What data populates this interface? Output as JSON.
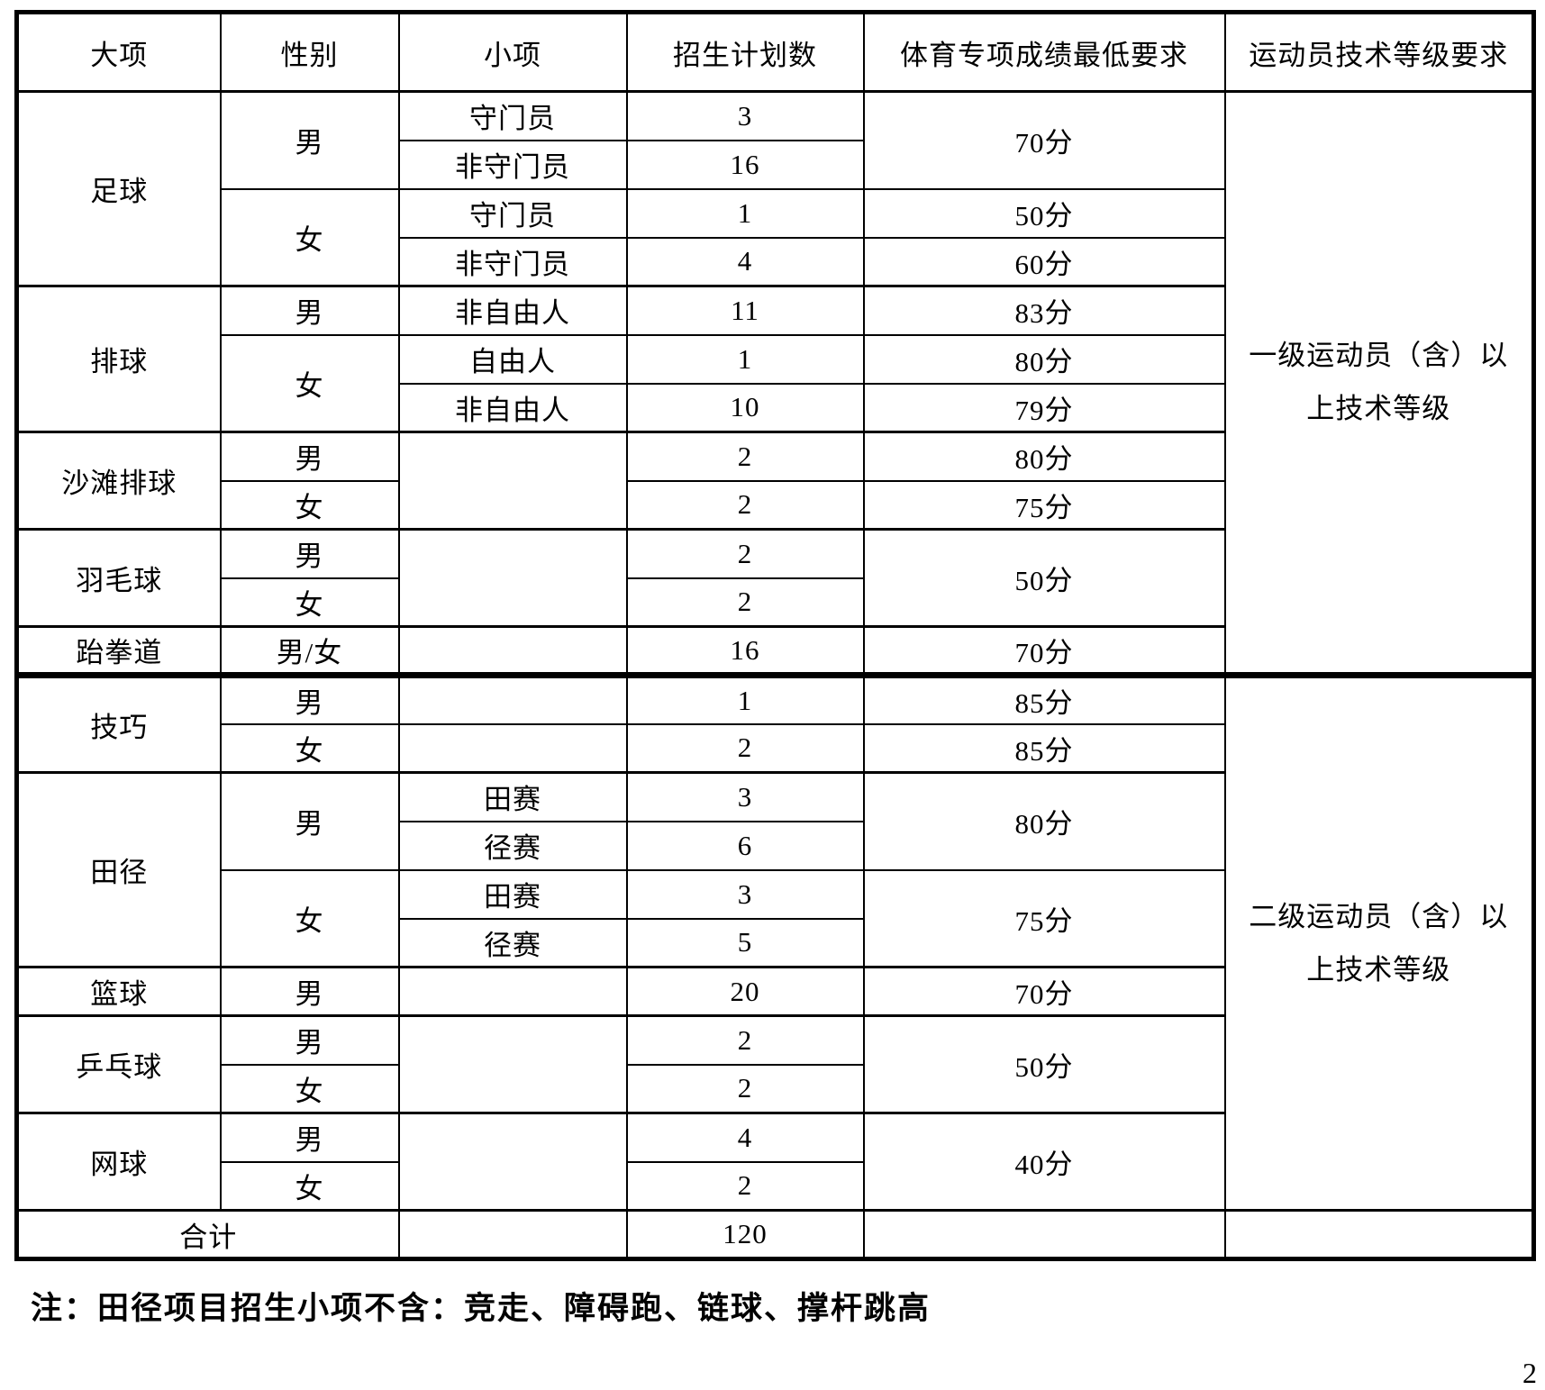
{
  "note": "注：田径项目招生小项不含：竞走、障碍跑、链球、撑杆跳高",
  "page_number": "2",
  "colors": {
    "border": "#000000",
    "text": "#000000",
    "background": "#ffffff"
  },
  "table": {
    "headers": [
      "大项",
      "性别",
      "小项",
      "招生计划数",
      "体育专项成绩最低要求",
      "运动员技术等级要求"
    ],
    "grade_tier_1": "一级运动员（含）以\n上技术等级",
    "grade_tier_2": "二级运动员（含）以\n上技术等级",
    "total_label": "合计",
    "total_value": "120",
    "rows": [
      {
        "header": true,
        "cells": [
          {
            "t": "大项"
          },
          {
            "t": "性别"
          },
          {
            "t": "小项"
          },
          {
            "t": "招生计划数"
          },
          {
            "t": "体育专项成绩最低要求"
          },
          {
            "t": "运动员技术等级要求"
          }
        ]
      },
      {
        "cells": [
          {
            "t": "足球",
            "rs": 4
          },
          {
            "t": "男",
            "rs": 2
          },
          {
            "t": "守门员"
          },
          {
            "t": "3"
          },
          {
            "t": "70分",
            "rs": 2
          },
          {
            "t": "一级运动员（含）以\n上技术等级",
            "rs": 12,
            "cls": "grade"
          }
        ]
      },
      {
        "cells": [
          {
            "t": "非守门员"
          },
          {
            "t": "16"
          }
        ]
      },
      {
        "cells": [
          {
            "t": "女",
            "rs": 2
          },
          {
            "t": "守门员"
          },
          {
            "t": "1"
          },
          {
            "t": "50分"
          }
        ]
      },
      {
        "cells": [
          {
            "t": "非守门员"
          },
          {
            "t": "4"
          },
          {
            "t": "60分"
          }
        ]
      },
      {
        "cls": "section",
        "cells": [
          {
            "t": "排球",
            "rs": 3
          },
          {
            "t": "男"
          },
          {
            "t": "非自由人"
          },
          {
            "t": "11"
          },
          {
            "t": "83分"
          }
        ]
      },
      {
        "cells": [
          {
            "t": "女",
            "rs": 2
          },
          {
            "t": "自由人"
          },
          {
            "t": "1"
          },
          {
            "t": "80分"
          }
        ]
      },
      {
        "cells": [
          {
            "t": "非自由人"
          },
          {
            "t": "10"
          },
          {
            "t": "79分"
          }
        ]
      },
      {
        "cls": "section",
        "cells": [
          {
            "t": "沙滩排球",
            "rs": 2
          },
          {
            "t": "男"
          },
          {
            "t": "",
            "rs": 2
          },
          {
            "t": "2"
          },
          {
            "t": "80分"
          }
        ]
      },
      {
        "cells": [
          {
            "t": "女"
          },
          {
            "t": "2"
          },
          {
            "t": "75分"
          }
        ]
      },
      {
        "cls": "section",
        "cells": [
          {
            "t": "羽毛球",
            "rs": 2
          },
          {
            "t": "男"
          },
          {
            "t": "",
            "rs": 2
          },
          {
            "t": "2"
          },
          {
            "t": "50分",
            "rs": 2
          }
        ]
      },
      {
        "cells": [
          {
            "t": "女"
          },
          {
            "t": "2"
          }
        ]
      },
      {
        "cls": "section",
        "cells": [
          {
            "t": "跆拳道"
          },
          {
            "t": "男/女"
          },
          {
            "t": ""
          },
          {
            "t": "16"
          },
          {
            "t": "70分"
          }
        ]
      },
      {
        "cls": "divider",
        "cells": [
          {
            "t": "技巧",
            "rs": 2
          },
          {
            "t": "男"
          },
          {
            "t": ""
          },
          {
            "t": "1"
          },
          {
            "t": "85分"
          },
          {
            "t": "二级运动员（含）以\n上技术等级",
            "rs": 11,
            "cls": "grade"
          }
        ]
      },
      {
        "cells": [
          {
            "t": "女"
          },
          {
            "t": ""
          },
          {
            "t": "2"
          },
          {
            "t": "85分"
          }
        ]
      },
      {
        "cls": "section",
        "cells": [
          {
            "t": "田径",
            "rs": 4
          },
          {
            "t": "男",
            "rs": 2
          },
          {
            "t": "田赛"
          },
          {
            "t": "3"
          },
          {
            "t": "80分",
            "rs": 2
          }
        ]
      },
      {
        "cells": [
          {
            "t": "径赛"
          },
          {
            "t": "6"
          }
        ]
      },
      {
        "cells": [
          {
            "t": "女",
            "rs": 2
          },
          {
            "t": "田赛"
          },
          {
            "t": "3"
          },
          {
            "t": "75分",
            "rs": 2
          }
        ]
      },
      {
        "cells": [
          {
            "t": "径赛"
          },
          {
            "t": "5"
          }
        ]
      },
      {
        "cls": "section",
        "cells": [
          {
            "t": "篮球"
          },
          {
            "t": "男"
          },
          {
            "t": ""
          },
          {
            "t": "20"
          },
          {
            "t": "70分"
          }
        ]
      },
      {
        "cls": "section",
        "cells": [
          {
            "t": "乒乓球",
            "rs": 2
          },
          {
            "t": "男"
          },
          {
            "t": "",
            "rs": 2
          },
          {
            "t": "2"
          },
          {
            "t": "50分",
            "rs": 2
          }
        ]
      },
      {
        "cells": [
          {
            "t": "女"
          },
          {
            "t": "2"
          }
        ]
      },
      {
        "cls": "section",
        "cells": [
          {
            "t": "网球",
            "rs": 2
          },
          {
            "t": "男"
          },
          {
            "t": "",
            "rs": 2
          },
          {
            "t": "4"
          },
          {
            "t": "40分",
            "rs": 2
          }
        ]
      },
      {
        "cells": [
          {
            "t": "女"
          },
          {
            "t": "2"
          }
        ]
      },
      {
        "cls": "section",
        "cells": [
          {
            "t": "合计",
            "cs": 2
          },
          {
            "t": ""
          },
          {
            "t": "120"
          },
          {
            "t": ""
          },
          {
            "t": ""
          }
        ]
      }
    ]
  }
}
